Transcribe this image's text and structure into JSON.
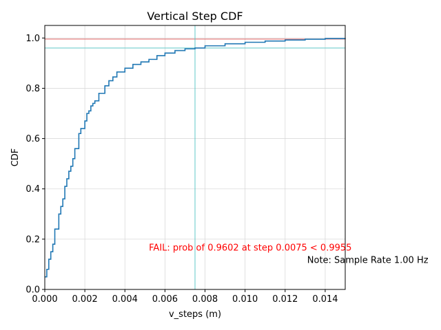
{
  "chart_data": {
    "type": "line",
    "title": "Vertical Step CDF",
    "xlabel": "v_steps (m)",
    "ylabel": "CDF",
    "xlim": [
      0,
      0.015
    ],
    "ylim": [
      0,
      1.05
    ],
    "grid": true,
    "x_ticks": [
      "0.000",
      "0.002",
      "0.004",
      "0.006",
      "0.008",
      "0.010",
      "0.012",
      "0.014"
    ],
    "x_tick_values": [
      0,
      0.002,
      0.004,
      0.006,
      0.008,
      0.01,
      0.012,
      0.014
    ],
    "y_ticks": [
      "0.0",
      "0.2",
      "0.4",
      "0.6",
      "0.8",
      "1.0"
    ],
    "y_tick_values": [
      0,
      0.2,
      0.4,
      0.6,
      0.8,
      1.0
    ],
    "series": [
      {
        "color": "#1f77b4",
        "x": [
          0,
          0.0001,
          0.0002,
          0.0003,
          0.0004,
          0.0005,
          0.0005,
          0.0007,
          0.0007,
          0.0008,
          0.0009,
          0.001,
          0.0011,
          0.0012,
          0.0013,
          0.0014,
          0.0015,
          0.0015,
          0.0017,
          0.0017,
          0.0018,
          0.002,
          0.0021,
          0.0022,
          0.0023,
          0.0024,
          0.0025,
          0.0027,
          0.0027,
          0.003,
          0.0032,
          0.0034,
          0.0036,
          0.004,
          0.0044,
          0.0048,
          0.0052,
          0.0056,
          0.006,
          0.0065,
          0.007,
          0.0075,
          0.008,
          0.009,
          0.01,
          0.011,
          0.012,
          0.013,
          0.014,
          0.015
        ],
        "y": [
          0.05,
          0.08,
          0.12,
          0.15,
          0.18,
          0.2,
          0.24,
          0.25,
          0.3,
          0.33,
          0.36,
          0.41,
          0.44,
          0.47,
          0.49,
          0.52,
          0.55,
          0.56,
          0.61,
          0.62,
          0.64,
          0.67,
          0.7,
          0.71,
          0.73,
          0.74,
          0.75,
          0.78,
          0.78,
          0.81,
          0.83,
          0.845,
          0.865,
          0.88,
          0.895,
          0.905,
          0.915,
          0.93,
          0.94,
          0.95,
          0.957,
          0.9602,
          0.969,
          0.977,
          0.983,
          0.988,
          0.992,
          0.995,
          0.998,
          0.999
        ]
      }
    ],
    "reference_lines": {
      "threshold_y": 0.9955,
      "threshold_color": "#e06060",
      "measured_y": 0.9602,
      "measured_x": 0.0075,
      "measured_color": "#5fc8c8"
    },
    "annotations": [
      {
        "text": "FAIL: prob of 0.9602 at step 0.0075 < 0.9955",
        "color": "#ff0000",
        "x": 0.0052,
        "y": 0.155
      },
      {
        "text": "Note: Sample Rate 1.00 Hz",
        "color": "#000000",
        "x": 0.0131,
        "y": 0.105
      }
    ]
  }
}
